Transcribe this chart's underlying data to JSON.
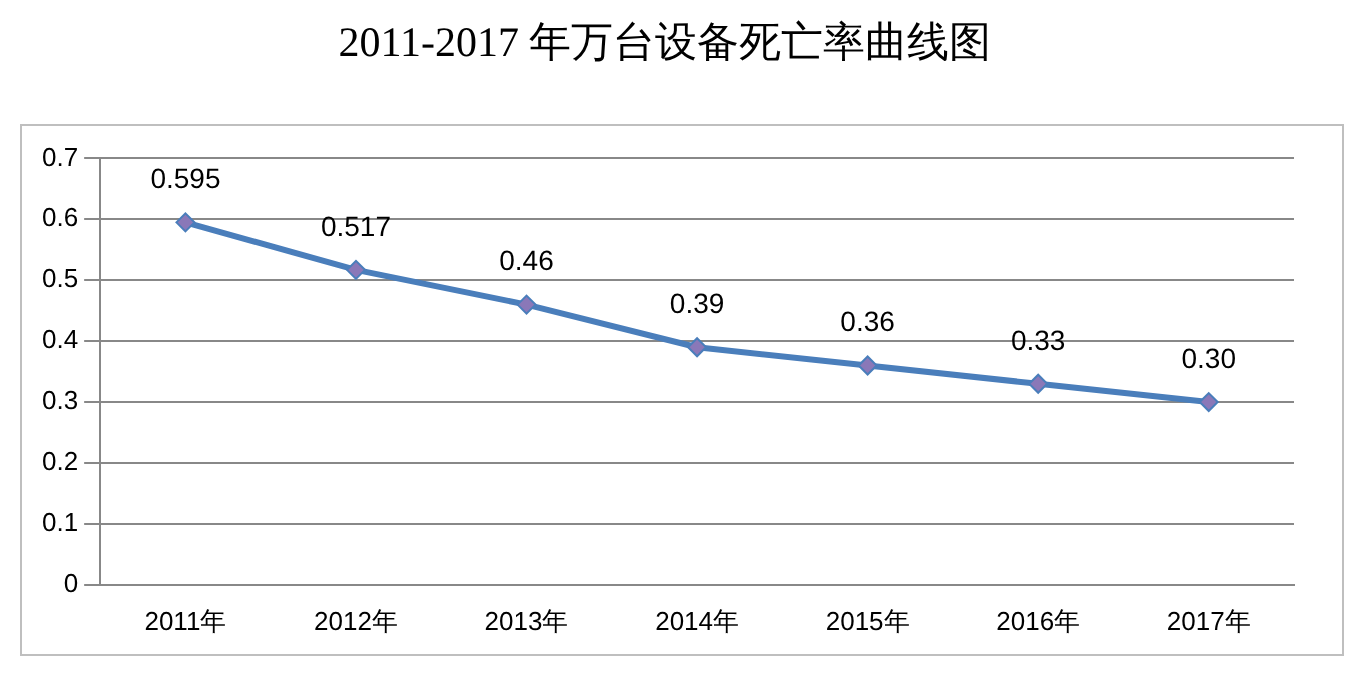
{
  "chart_data": {
    "type": "line",
    "title": "2011-2017 年万台设备死亡率曲线图",
    "categories": [
      "2011年",
      "2012年",
      "2013年",
      "2014年",
      "2015年",
      "2016年",
      "2017年"
    ],
    "series": [
      {
        "color": "#4a7ebb",
        "values": [
          0.595,
          0.517,
          0.46,
          0.39,
          0.36,
          0.33,
          0.3
        ],
        "value_labels": [
          "0.595",
          "0.517",
          "0.46",
          "0.39",
          "0.36",
          "0.33",
          "0.30"
        ]
      }
    ],
    "ylim": [
      0,
      0.7
    ],
    "yticks": [
      0,
      0.1,
      0.2,
      0.3,
      0.4,
      0.5,
      0.6,
      0.7
    ],
    "grid": "y",
    "legend": false,
    "marker": "diamond",
    "line_style": "solid"
  }
}
